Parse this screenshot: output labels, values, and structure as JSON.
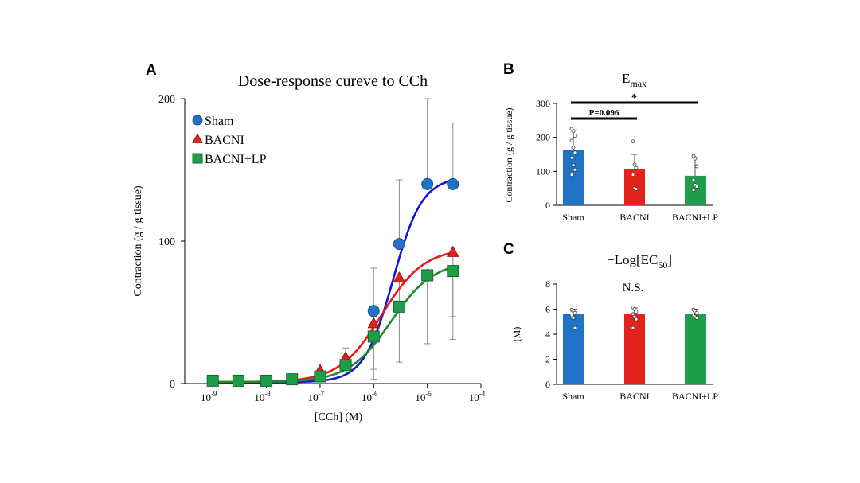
{
  "panels": {
    "a": {
      "letter": "A"
    },
    "b": {
      "letter": "B"
    },
    "c": {
      "letter": "C"
    }
  },
  "colors": {
    "sham": "#1f73c6",
    "bacni": "#e3221b",
    "bacni_lp": "#1e9e4a",
    "sham_curve": "#1414d2",
    "bacni_curve": "#e31a1a",
    "bacni_lp_curve": "#1f8a2c",
    "error_bar": "#8c8c8c"
  },
  "chart_data": [
    {
      "id": "panel-a",
      "type": "scatter",
      "title": "Dose-response cureve to CCh",
      "xlabel": "[CCh] (M)",
      "ylabel": "Contraction (g / g tissue)",
      "x_scale": "log",
      "xlim": [
        3e-10,
        0.0001
      ],
      "ylim": [
        0,
        200
      ],
      "yticks": [
        0,
        100,
        200
      ],
      "xtick_labels": [
        "10-9",
        "10-8",
        "10-7",
        "10-6",
        "10-5",
        "10-4"
      ],
      "xtick_values": [
        1e-09,
        1e-08,
        1e-07,
        1e-06,
        1e-05,
        0.0001
      ],
      "legend_position": "top-left",
      "series": [
        {
          "name": "Sham",
          "marker": "circle",
          "x": [
            1e-06,
            3e-06,
            1e-05,
            3e-05
          ],
          "y": [
            51,
            98,
            140,
            140
          ],
          "err_low": [
            41,
            0,
            0,
            0
          ],
          "err_high": [
            81,
            143,
            200,
            183
          ],
          "fit": {
            "bottom": 1,
            "top": 145,
            "ec50": 2.3e-06,
            "hill": 1.6
          }
        },
        {
          "name": "BACNI",
          "marker": "triangle",
          "x": [
            1e-07,
            3e-07,
            1e-06,
            3e-06,
            1e-05,
            3e-05
          ],
          "y": [
            9,
            18,
            42,
            74,
            76,
            92
          ],
          "err_low": [
            0,
            0,
            10,
            15,
            28,
            47
          ],
          "err_high": [
            0,
            25,
            0,
            0,
            0,
            0
          ],
          "fit": {
            "bottom": 1,
            "top": 95,
            "ec50": 1.4e-06,
            "hill": 1.1
          }
        },
        {
          "name": "BACNI+LP",
          "marker": "square",
          "x": [
            1e-09,
            3e-09,
            1e-08,
            3e-08,
            1e-07,
            3e-07,
            1e-06,
            3e-06,
            1e-05,
            3e-05
          ],
          "y": [
            2,
            2,
            2,
            3,
            5,
            13,
            33,
            54,
            76,
            79
          ],
          "err_low": [
            0,
            0,
            0,
            0,
            0,
            8,
            3,
            0,
            0,
            31
          ],
          "err_high": [
            0,
            0,
            0,
            0,
            0,
            18,
            47,
            0,
            0,
            0
          ],
          "fit": {
            "bottom": 1,
            "top": 86,
            "ec50": 2.1e-06,
            "hill": 1.1
          }
        }
      ]
    },
    {
      "id": "panel-b",
      "type": "bar",
      "title": "E",
      "title_sub": "max",
      "ylabel": "Contraction (g / g tissue)",
      "ylim": [
        0,
        300
      ],
      "yticks": [
        0,
        100,
        200,
        300
      ],
      "categories": [
        "Sham",
        "BACNI",
        "BACNI+LP"
      ],
      "values": [
        164,
        107,
        87
      ],
      "err_high": [
        222,
        150,
        140
      ],
      "points": [
        [
          225,
          218,
          205,
          190,
          170,
          155,
          140,
          118,
          105,
          90
        ],
        [
          188,
          120,
          110,
          90,
          50,
          48
        ],
        [
          145,
          138,
          115,
          75,
          60,
          55,
          45
        ]
      ],
      "annotations": [
        {
          "label": "P=0.096",
          "from": 0,
          "to": 1
        },
        {
          "label": "*",
          "from": 0,
          "to": 2
        }
      ]
    },
    {
      "id": "panel-c",
      "type": "bar",
      "title": "−Log[EC",
      "title_sub": "50",
      "title_end": "]",
      "note": "N.S.",
      "ylabel": "(M)",
      "ylim": [
        0,
        8
      ],
      "yticks": [
        0,
        2,
        4,
        6,
        8
      ],
      "categories": [
        "Sham",
        "BACNI",
        "BACNI+LP"
      ],
      "values": [
        5.6,
        5.65,
        5.65
      ],
      "err_high": [
        6.0,
        6.1,
        6.0
      ],
      "points": [
        [
          5.95,
          5.85,
          5.7,
          5.5,
          5.3,
          4.5
        ],
        [
          6.15,
          6.0,
          5.8,
          5.6,
          5.4,
          5.2,
          4.5
        ],
        [
          5.95,
          5.8,
          5.7,
          5.5,
          5.4,
          5.3
        ]
      ]
    }
  ]
}
